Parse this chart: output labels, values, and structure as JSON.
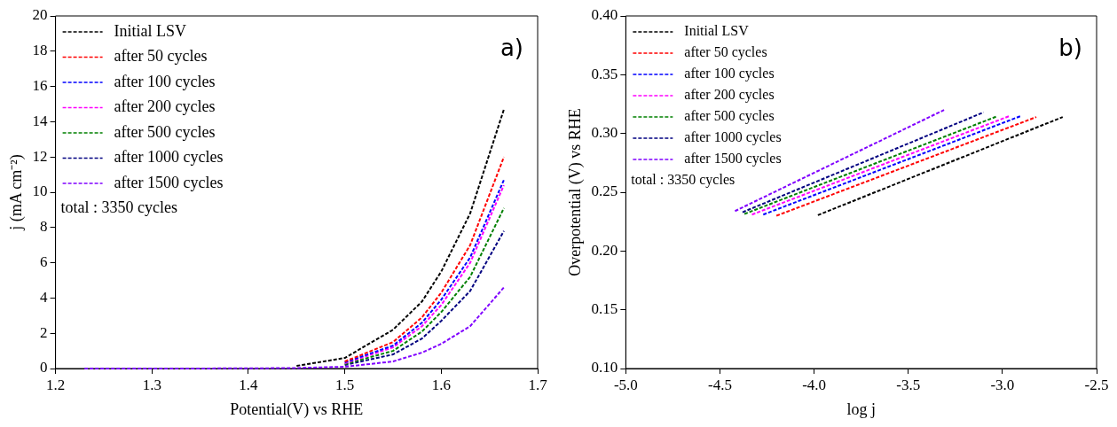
{
  "chart_data": [
    {
      "type": "line",
      "xlabel": "Potential(V) vs RHE",
      "ylabel": "j (mA cm⁻²)",
      "legend": "top left",
      "grid": false,
      "marker": "none",
      "line_style": "dashed",
      "annotations": [
        "a)",
        "total : 3350 cycles"
      ],
      "xlim": [
        1.2,
        1.7
      ],
      "xticks": [
        1.2,
        1.3,
        1.4,
        1.5,
        1.6,
        1.7
      ],
      "ylim": [
        0,
        20
      ],
      "yticks": [
        0,
        2,
        4,
        6,
        8,
        10,
        12,
        14,
        16,
        18,
        20
      ],
      "x": [
        1.23,
        1.3,
        1.4,
        1.45,
        1.5,
        1.55,
        1.58,
        1.6,
        1.63,
        1.665
      ],
      "series": [
        {
          "name": "Initial LSV",
          "color": "#000000",
          "values": [
            null,
            null,
            null,
            0.15,
            0.6,
            2.2,
            3.8,
            5.5,
            8.8,
            14.7
          ]
        },
        {
          "name": "after 50 cycles",
          "color": "#ff0000",
          "values": [
            null,
            null,
            null,
            null,
            0.4,
            1.5,
            2.9,
            4.3,
            7.0,
            12.0
          ]
        },
        {
          "name": "after 100 cycles",
          "color": "#0000ff",
          "values": [
            null,
            null,
            null,
            null,
            0.35,
            1.3,
            2.6,
            3.9,
            6.3,
            10.7
          ]
        },
        {
          "name": "after 200 cycles",
          "color": "#ff00ff",
          "values": [
            null,
            null,
            null,
            null,
            0.3,
            1.2,
            2.4,
            3.6,
            6.0,
            10.4
          ]
        },
        {
          "name": "after 500 cycles",
          "color": "#008000",
          "values": [
            null,
            null,
            null,
            null,
            0.25,
            1.0,
            2.1,
            3.2,
            5.2,
            9.1
          ]
        },
        {
          "name": "after 1000 cycles",
          "color": "#000080",
          "values": [
            null,
            null,
            null,
            null,
            0.2,
            0.8,
            1.7,
            2.7,
            4.4,
            7.8
          ]
        },
        {
          "name": "after 1500 cycles",
          "color": "#8000ff",
          "values": [
            0,
            0,
            0.01,
            0.03,
            0.1,
            0.4,
            0.9,
            1.4,
            2.4,
            4.6
          ]
        }
      ]
    },
    {
      "type": "line",
      "xlabel": "log j",
      "ylabel": "Overpotential (V) vs RHE",
      "legend": "top left",
      "grid": false,
      "marker": "none",
      "line_style": "dashed",
      "annotations": [
        "b)",
        "total : 3350 cycles"
      ],
      "xlim": [
        -5.0,
        -2.5
      ],
      "xticks": [
        {
          "value": -5,
          "label": "-5.0"
        },
        {
          "value": -4.5,
          "label": "-4.5"
        },
        {
          "value": -4,
          "label": "-4.0"
        },
        {
          "value": -3.5,
          "label": "-3.5"
        },
        {
          "value": -3,
          "label": "-3.0"
        },
        {
          "value": -2.5,
          "label": "-2.5"
        }
      ],
      "ylim": [
        0.1,
        0.4
      ],
      "yticks": [
        {
          "value": 0.1,
          "label": "0.10"
        },
        0.15,
        {
          "value": 0.2,
          "label": "0.20"
        },
        0.25,
        {
          "value": 0.3,
          "label": "0.30"
        },
        0.35,
        {
          "value": 0.4,
          "label": "0.40"
        }
      ],
      "series": [
        {
          "name": "Initial LSV",
          "color": "#000000",
          "x": [
            -3.98,
            -2.68
          ],
          "values": [
            0.2305,
            0.314
          ]
        },
        {
          "name": "after 50 cycles",
          "color": "#ff0000",
          "x": [
            -4.2,
            -2.82
          ],
          "values": [
            0.23,
            0.314
          ]
        },
        {
          "name": "after 100 cycles",
          "color": "#0000ff",
          "x": [
            -4.27,
            -2.9
          ],
          "values": [
            0.231,
            0.315
          ]
        },
        {
          "name": "after 200 cycles",
          "color": "#ff00ff",
          "x": [
            -4.33,
            -2.96
          ],
          "values": [
            0.231,
            0.315
          ]
        },
        {
          "name": "after 500 cycles",
          "color": "#008000",
          "x": [
            -4.37,
            -3.03
          ],
          "values": [
            0.2315,
            0.3145
          ]
        },
        {
          "name": "after 1000 cycles",
          "color": "#000080",
          "x": [
            -4.38,
            -3.1
          ],
          "values": [
            0.233,
            0.318
          ]
        },
        {
          "name": "after 1500 cycles",
          "color": "#8000ff",
          "x": [
            -4.42,
            -3.31
          ],
          "values": [
            0.234,
            0.32
          ]
        }
      ]
    }
  ]
}
